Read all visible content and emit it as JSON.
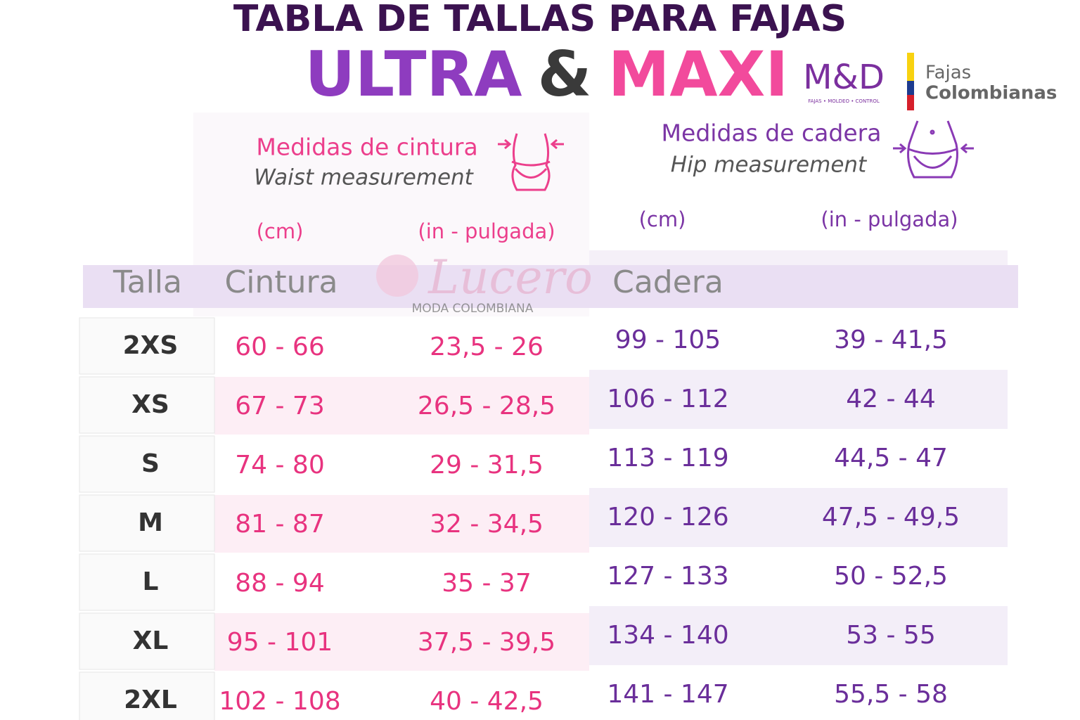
{
  "header": {
    "title": "TABLA DE TALLAS PARA FAJAS",
    "ultra": "ULTRA",
    "amp": "&",
    "maxi": "MAXI"
  },
  "brand": {
    "logo": "M&D",
    "tagline": "FAJAS • MOLDEO • CONTROL",
    "line1": "Fajas",
    "line2": "Colombianas"
  },
  "waist": {
    "title": "Medidas de cintura",
    "subtitle": "Waist measurement",
    "units": [
      "(cm)",
      "(in - pulgada)"
    ]
  },
  "hip": {
    "title": "Medidas de cadera",
    "subtitle": "Hip measurement",
    "units": [
      "(cm)",
      "(in - pulgada)"
    ]
  },
  "watermark": {
    "name": "Lucero",
    "tagline": "MODA COLOMBIANA"
  },
  "table": {
    "columns": [
      "Talla",
      "Cintura",
      "Cadera"
    ],
    "rows": [
      [
        "2XS",
        "60 - 66",
        "23,5 - 26",
        "99 - 105",
        "39 - 41,5"
      ],
      [
        "XS",
        "67 - 73",
        "26,5 - 28,5",
        "106 - 112",
        "42 - 44"
      ],
      [
        "S",
        "74 - 80",
        "29 - 31,5",
        "113 - 119",
        "44,5 - 47"
      ],
      [
        "M",
        "81 - 87",
        "32 - 34,5",
        "120 - 126",
        "47,5 - 49,5"
      ],
      [
        "L",
        "88 - 94",
        "35 - 37",
        "127 - 133",
        "50 - 52,5"
      ],
      [
        "XL",
        "95 - 101",
        "37,5 - 39,5",
        "134 - 140",
        "53 - 55"
      ],
      [
        "2XL",
        "102 - 108",
        "40 - 42,5",
        "141 - 147",
        "55,5 - 58"
      ]
    ]
  }
}
